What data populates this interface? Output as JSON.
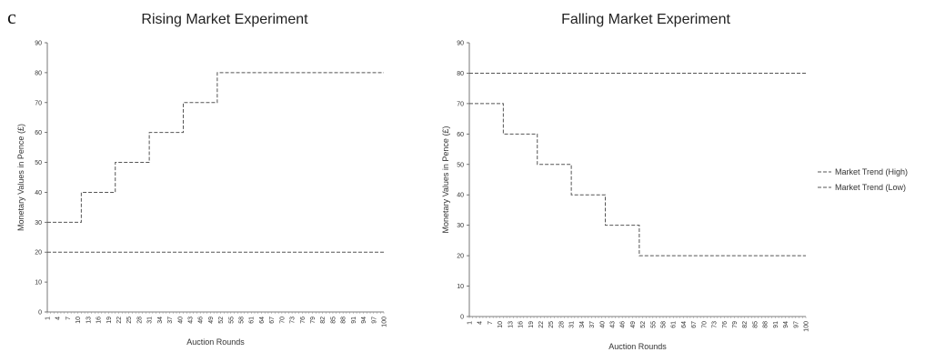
{
  "panel_label": "c",
  "chart_data": [
    {
      "type": "line",
      "title": "Rising Market Experiment",
      "xlabel": "Auction Rounds",
      "ylabel": "Monetary Values in Pence (£)",
      "ylim": [
        0,
        90
      ],
      "yticks": [
        0,
        10,
        20,
        30,
        40,
        50,
        60,
        70,
        80,
        90
      ],
      "xticks": [
        1,
        4,
        7,
        10,
        13,
        16,
        19,
        22,
        25,
        28,
        31,
        34,
        37,
        40,
        43,
        46,
        49,
        52,
        55,
        58,
        61,
        64,
        67,
        70,
        73,
        76,
        79,
        82,
        85,
        88,
        91,
        94,
        97,
        100
      ],
      "x_range": [
        1,
        100
      ],
      "grid": false,
      "legend": "none",
      "series": [
        {
          "name": "Market Trend (High)",
          "steps": [
            [
              1,
              30
            ],
            [
              11,
              40
            ],
            [
              21,
              50
            ],
            [
              31,
              60
            ],
            [
              41,
              70
            ],
            [
              51,
              80
            ]
          ],
          "x_end": 100
        },
        {
          "name": "Market Trend (Low)",
          "steps": [
            [
              1,
              20
            ]
          ],
          "x_end": 100
        }
      ]
    },
    {
      "type": "line",
      "title": "Falling Market Experiment",
      "xlabel": "Auction Rounds",
      "ylabel": "Monetary Values in Pence (£)",
      "ylim": [
        0,
        90
      ],
      "yticks": [
        0,
        10,
        20,
        30,
        40,
        50,
        60,
        70,
        80,
        90
      ],
      "xticks": [
        1,
        4,
        7,
        10,
        13,
        16,
        19,
        22,
        25,
        28,
        31,
        34,
        37,
        40,
        43,
        46,
        49,
        52,
        55,
        58,
        61,
        64,
        67,
        70,
        73,
        76,
        79,
        82,
        85,
        88,
        91,
        94,
        97,
        100
      ],
      "x_range": [
        1,
        100
      ],
      "grid": false,
      "legend": "right",
      "series": [
        {
          "name": "Market Trend (High)",
          "steps": [
            [
              1,
              80
            ]
          ],
          "x_end": 100
        },
        {
          "name": "Market Trend (Low)",
          "steps": [
            [
              1,
              70
            ],
            [
              11,
              60
            ],
            [
              21,
              50
            ],
            [
              31,
              40
            ],
            [
              41,
              30
            ],
            [
              51,
              20
            ]
          ],
          "x_end": 100
        }
      ]
    }
  ],
  "legend": {
    "entries": [
      "Market Trend (High)",
      "Market Trend (Low)"
    ],
    "color": "#555555"
  }
}
